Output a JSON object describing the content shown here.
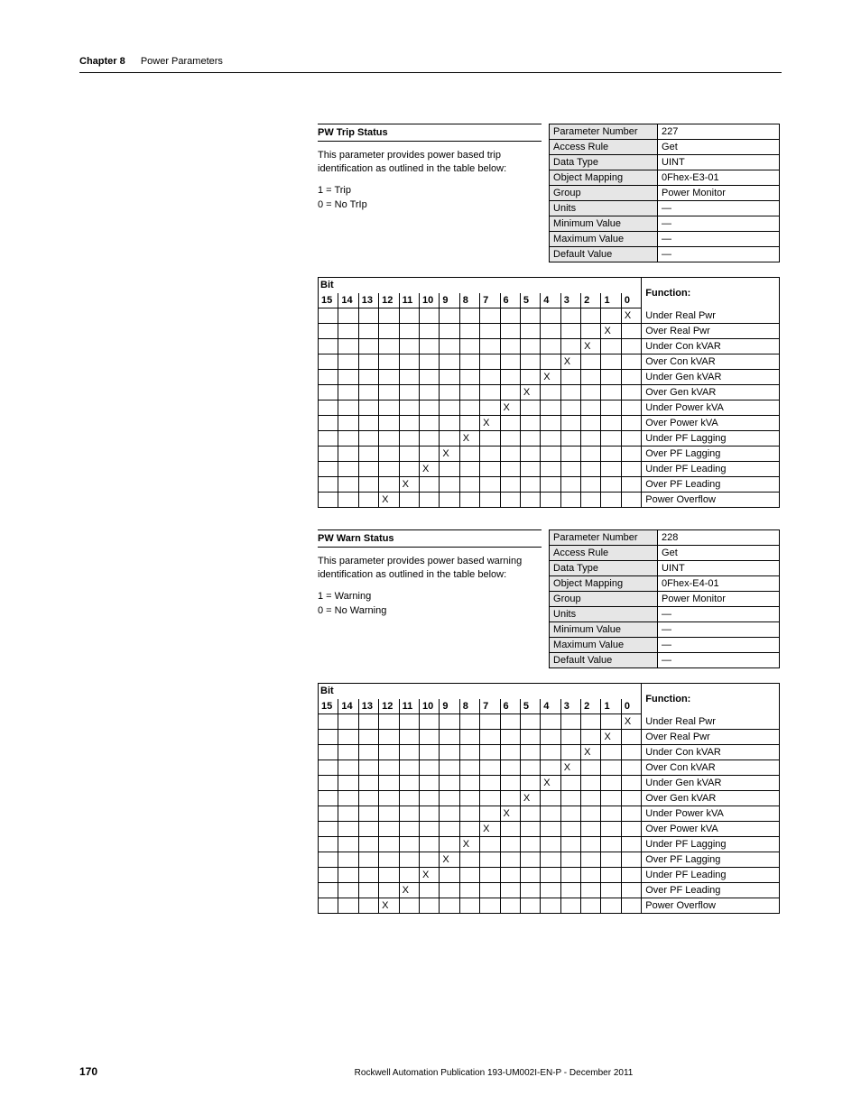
{
  "header": {
    "chapter": "Chapter 8",
    "title": "Power Parameters"
  },
  "param1": {
    "title": "PW Trip Status",
    "desc": "This parameter provides power based trip identification as outlined in the table below:",
    "legend1": "1 = Trip",
    "legend0": "0 = No TrIp",
    "attrs": [
      [
        "Parameter Number",
        "227"
      ],
      [
        "Access Rule",
        "Get"
      ],
      [
        "Data Type",
        "UINT"
      ],
      [
        "Object Mapping",
        "0Fhex-E3-01"
      ],
      [
        "Group",
        "Power Monitor"
      ],
      [
        "Units",
        "—"
      ],
      [
        "Minimum Value",
        "—"
      ],
      [
        "Maximum Value",
        "—"
      ],
      [
        "Default Value",
        "—"
      ]
    ]
  },
  "param2": {
    "title": "PW Warn Status",
    "desc": "This parameter provides power based warning identification as outlined in the table below:",
    "legend1": "1 = Warning",
    "legend0": "0 = No Warning",
    "attrs": [
      [
        "Parameter Number",
        "228"
      ],
      [
        "Access Rule",
        "Get"
      ],
      [
        "Data Type",
        "UINT"
      ],
      [
        "Object Mapping",
        "0Fhex-E4-01"
      ],
      [
        "Group",
        "Power Monitor"
      ],
      [
        "Units",
        "—"
      ],
      [
        "Minimum Value",
        "—"
      ],
      [
        "Maximum Value",
        "—"
      ],
      [
        "Default Value",
        "—"
      ]
    ]
  },
  "bitTable": {
    "bitHead": "Bit",
    "funcHead": "Function:",
    "bits": [
      "15",
      "14",
      "13",
      "12",
      "11",
      "10",
      "9",
      "8",
      "7",
      "6",
      "5",
      "4",
      "3",
      "2",
      "1",
      "0"
    ],
    "rows": [
      {
        "mark": 0,
        "func": "Under Real Pwr"
      },
      {
        "mark": 1,
        "func": "Over Real Pwr"
      },
      {
        "mark": 2,
        "func": "Under Con kVAR"
      },
      {
        "mark": 3,
        "func": "Over Con kVAR"
      },
      {
        "mark": 4,
        "func": "Under Gen kVAR"
      },
      {
        "mark": 5,
        "func": "Over Gen kVAR"
      },
      {
        "mark": 6,
        "func": "Under Power kVA"
      },
      {
        "mark": 7,
        "func": "Over Power kVA"
      },
      {
        "mark": 8,
        "func": "Under PF Lagging"
      },
      {
        "mark": 9,
        "func": "Over PF Lagging"
      },
      {
        "mark": 10,
        "func": "Under PF Leading"
      },
      {
        "mark": 11,
        "func": "Over PF Leading"
      },
      {
        "mark": 12,
        "func": "Power Overflow"
      }
    ]
  },
  "footer": {
    "page": "170",
    "pub": "Rockwell Automation Publication 193-UM002I-EN-P - December 2011"
  }
}
